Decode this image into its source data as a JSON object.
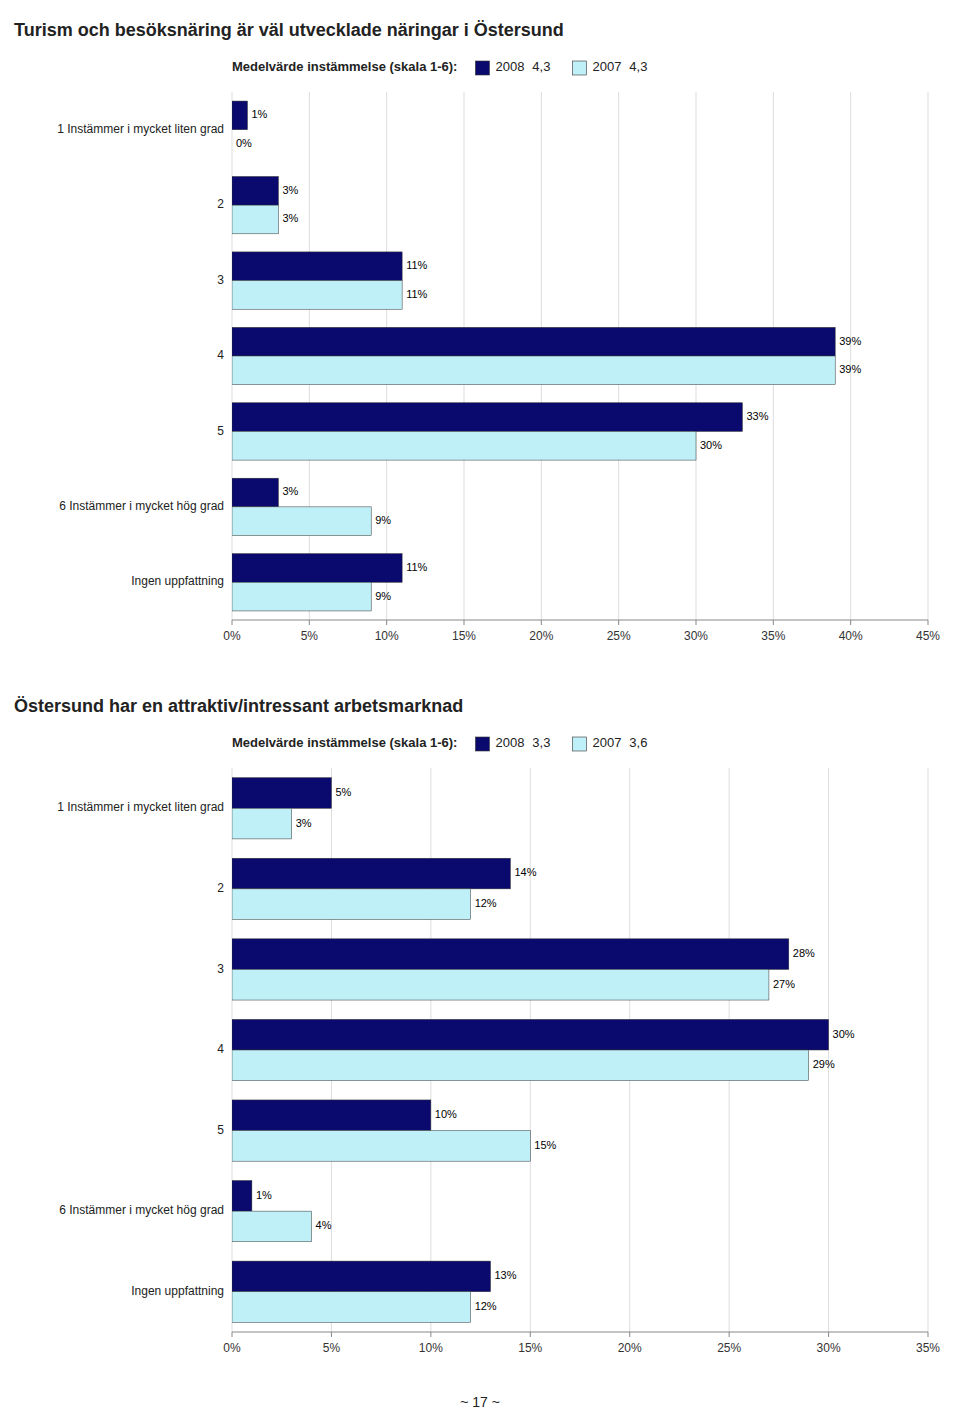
{
  "chart_data": [
    {
      "type": "bar",
      "orientation": "horizontal",
      "title": "Turism och besöksnäring är väl utvecklade näringar i Östersund",
      "categories": [
        "1 Instämmer i mycket liten grad",
        "2",
        "3",
        "4",
        "5",
        "6 Instämmer i mycket hög grad",
        "Ingen uppfattning"
      ],
      "legend_title": "Medelvärde instämmelse (skala 1-6):",
      "series": [
        {
          "name": "2008",
          "color": "#0a0a6e",
          "values": [
            1,
            3,
            11,
            39,
            33,
            3,
            11
          ],
          "value_labels": [
            "1%",
            "3%",
            "11%",
            "39%",
            "33%",
            "3%",
            "11%"
          ],
          "mean": 4.3,
          "mean_label": "4,3"
        },
        {
          "name": "2007",
          "color": "#bff0f8",
          "values": [
            0,
            3,
            11,
            39,
            30,
            9,
            9
          ],
          "value_labels": [
            "0%",
            "3%",
            "11%",
            "39%",
            "30%",
            "9%",
            "9%"
          ],
          "mean": 4.3,
          "mean_label": "4,3"
        }
      ],
      "xlim": [
        0,
        45
      ],
      "xticks": [
        {
          "value": 0,
          "label": "0%"
        },
        {
          "value": 5,
          "label": "5%"
        },
        {
          "value": 10,
          "label": "10%"
        },
        {
          "value": 15,
          "label": "15%"
        },
        {
          "value": 20,
          "label": "20%"
        },
        {
          "value": 25,
          "label": "25%"
        },
        {
          "value": 30,
          "label": "30%"
        },
        {
          "value": 35,
          "label": "35%"
        },
        {
          "value": 40,
          "label": "40%"
        },
        {
          "value": 45,
          "label": "45%"
        }
      ],
      "grid": true,
      "data_labels": true
    },
    {
      "type": "bar",
      "orientation": "horizontal",
      "title": "Östersund har en attraktiv/intressant arbetsmarknad",
      "categories": [
        "1 Instämmer i mycket liten grad",
        "2",
        "3",
        "4",
        "5",
        "6 Instämmer i mycket hög grad",
        "Ingen uppfattning"
      ],
      "legend_title": "Medelvärde instämmelse (skala 1-6):",
      "series": [
        {
          "name": "2008",
          "color": "#0a0a6e",
          "values": [
            5,
            14,
            28,
            30,
            10,
            1,
            13
          ],
          "value_labels": [
            "5%",
            "14%",
            "28%",
            "30%",
            "10%",
            "1%",
            "13%"
          ],
          "mean": 3.3,
          "mean_label": "3,3"
        },
        {
          "name": "2007",
          "color": "#bff0f8",
          "values": [
            3,
            12,
            27,
            29,
            15,
            4,
            12
          ],
          "value_labels": [
            "3%",
            "12%",
            "27%",
            "29%",
            "15%",
            "4%",
            "12%"
          ],
          "mean": 3.6,
          "mean_label": "3,6"
        }
      ],
      "xlim": [
        0,
        35
      ],
      "xticks": [
        {
          "value": 0,
          "label": "0%"
        },
        {
          "value": 5,
          "label": "5%"
        },
        {
          "value": 10,
          "label": "10%"
        },
        {
          "value": 15,
          "label": "15%"
        },
        {
          "value": 20,
          "label": "20%"
        },
        {
          "value": 25,
          "label": "25%"
        },
        {
          "value": 30,
          "label": "30%"
        },
        {
          "value": 35,
          "label": "35%"
        }
      ],
      "grid": true,
      "data_labels": true,
      "annotations": [
        {
          "text": "~ 17 ~"
        }
      ]
    }
  ]
}
